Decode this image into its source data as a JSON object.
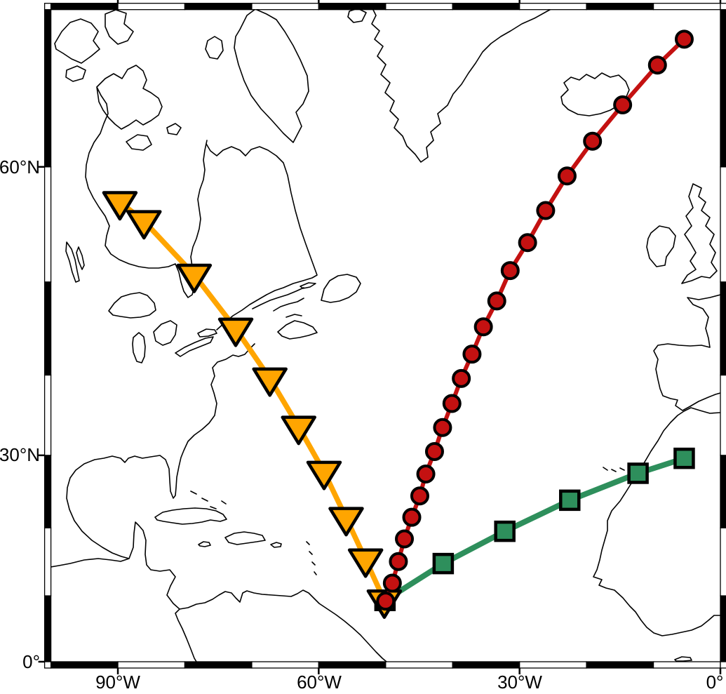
{
  "figure": {
    "kind": "geographic map with trajectories",
    "background_color": "#ffffff",
    "frame_style": "fancy-checkered",
    "frame_colors": {
      "dark": "#000000",
      "light": "#ffffff"
    },
    "frame_interval_deg": 10
  },
  "axes": {
    "x_ticks": [
      {
        "lon": -90,
        "label": "90°W"
      },
      {
        "lon": -60,
        "label": "60°W"
      },
      {
        "lon": -30,
        "label": "30°W"
      },
      {
        "lon": 0,
        "label": "0°"
      }
    ],
    "y_ticks": [
      {
        "lat": 60,
        "label": "60°N"
      },
      {
        "lat": 30,
        "label": "30°N"
      },
      {
        "lat": 0,
        "label": "0°"
      }
    ]
  },
  "chart_data": {
    "type": "line",
    "subtype": "map-trajectories",
    "projection": {
      "name": "mercator",
      "lon_range": [
        -100,
        0
      ],
      "lat_range": [
        0,
        70
      ]
    },
    "grid": false,
    "legend": false,
    "series": [
      {
        "name": "green-square-track",
        "marker": "square",
        "color": "#2E8F5C",
        "line_width": 8,
        "points": [
          [
            -50.1,
            9.3
          ],
          [
            -41.4,
            14.8
          ],
          [
            -32.2,
            19.5
          ],
          [
            -22.5,
            23.9
          ],
          [
            -12.3,
            27.6
          ],
          [
            -5.4,
            29.6
          ]
        ]
      },
      {
        "name": "orange-triangle-track",
        "marker": "triangle-down",
        "color": "#FFA500",
        "line_width": 7.5,
        "points": [
          [
            -89.7,
            57.2
          ],
          [
            -86.1,
            55.6
          ],
          [
            -78.6,
            50.7
          ],
          [
            -72.4,
            45.2
          ],
          [
            -67.3,
            39.6
          ],
          [
            -63.0,
            33.7
          ],
          [
            -59.2,
            27.8
          ],
          [
            -55.9,
            21.4
          ],
          [
            -53.0,
            15.4
          ],
          [
            -50.2,
            9.3
          ]
        ]
      },
      {
        "name": "red-circle-track",
        "marker": "circle",
        "color": "#C41111",
        "line_width": 6,
        "points": [
          [
            -50.0,
            9.2
          ],
          [
            -49.0,
            11.9
          ],
          [
            -48.1,
            15.1
          ],
          [
            -47.2,
            18.4
          ],
          [
            -46.1,
            21.5
          ],
          [
            -44.9,
            24.5
          ],
          [
            -44.0,
            27.5
          ],
          [
            -42.7,
            30.5
          ],
          [
            -41.5,
            33.6
          ],
          [
            -40.1,
            36.6
          ],
          [
            -38.7,
            39.6
          ],
          [
            -37.1,
            42.4
          ],
          [
            -35.4,
            45.4
          ],
          [
            -33.4,
            48.1
          ],
          [
            -31.4,
            51.1
          ],
          [
            -28.8,
            53.7
          ],
          [
            -26.1,
            56.5
          ],
          [
            -22.9,
            59.3
          ],
          [
            -19.1,
            61.9
          ],
          [
            -14.6,
            64.4
          ],
          [
            -9.4,
            66.9
          ],
          [
            -5.4,
            68.4
          ]
        ]
      }
    ]
  }
}
